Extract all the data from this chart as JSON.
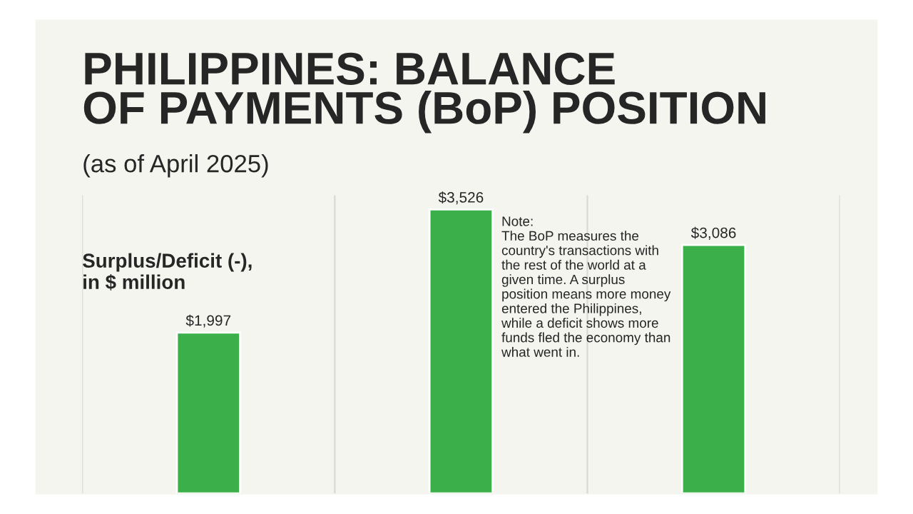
{
  "chart_data": {
    "type": "bar",
    "title": "PHILIPPINES: BALANCE\nOF PAYMENTS (BoP) POSITION",
    "subtitle": "(as of April 2025)",
    "ylabel": "Surplus/Deficit (-),\nin $ million",
    "categories": [
      null,
      null,
      null
    ],
    "values": [
      1997,
      3526,
      3086
    ],
    "value_labels": [
      "$1,997",
      "$3,526",
      "$3,086"
    ],
    "color": "#3aaf4a",
    "grid": "x",
    "annotations": [
      "Note:\nThe BoP measures the\ncountry's transactions with\nthe rest of the world at a\ngiven time. A surplus\nposition means more money\nentered the Philippines,\nwhile a deficit shows more\nfunds fled the economy than\nwhat went in."
    ]
  }
}
